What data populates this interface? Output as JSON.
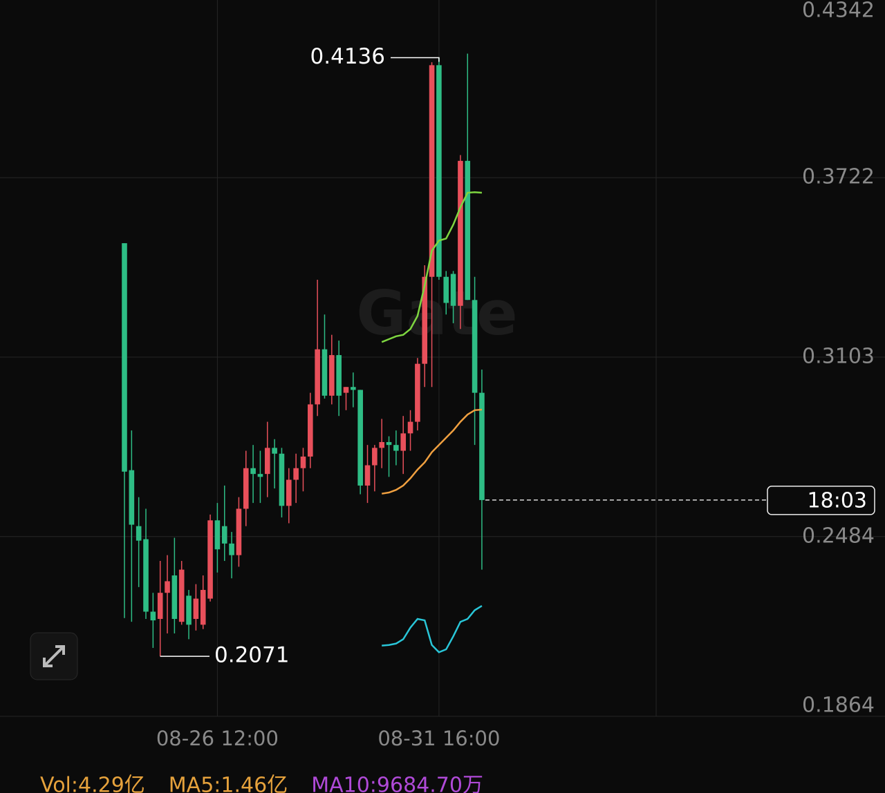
{
  "chart_data": {
    "type": "candlestick",
    "watermark": "Gate",
    "categories": [
      null,
      null,
      null,
      null,
      null,
      null,
      null,
      null,
      null,
      null,
      null,
      null,
      null,
      "08-26 12:00",
      null,
      null,
      null,
      null,
      null,
      null,
      null,
      null,
      null,
      null,
      null,
      null,
      null,
      null,
      null,
      null,
      null,
      null,
      null,
      null,
      null,
      null,
      null,
      null,
      null,
      null,
      null,
      null,
      null,
      null,
      "08-31 16:00",
      null,
      null,
      null,
      null,
      null,
      null
    ],
    "open": [
      0.3496,
      0.2713,
      0.252,
      0.2475,
      0.2225,
      0.22,
      0.229,
      0.235,
      0.219,
      0.228,
      0.22,
      0.218,
      0.227,
      0.254,
      0.252,
      0.246,
      0.242,
      0.258,
      0.272,
      0.27,
      0.27,
      0.279,
      0.277,
      0.259,
      0.268,
      0.272,
      0.276,
      0.294,
      0.313,
      0.297,
      0.311,
      0.298,
      0.3,
      0.299,
      0.266,
      0.273,
      0.279,
      0.281,
      0.28,
      0.278,
      0.284,
      0.288,
      0.308,
      0.338,
      0.411,
      0.338,
      0.339,
      0.328,
      0.378,
      0.33,
      0.298
    ],
    "high": [
      0.3496,
      0.285,
      0.262,
      0.258,
      0.229,
      0.24,
      0.242,
      0.248,
      0.24,
      0.23,
      0.232,
      0.235,
      0.256,
      0.26,
      0.266,
      0.25,
      0.262,
      0.278,
      0.28,
      0.278,
      0.288,
      0.282,
      0.279,
      0.272,
      0.277,
      0.279,
      0.298,
      0.337,
      0.325,
      0.318,
      0.316,
      0.3,
      0.305,
      0.299,
      0.28,
      0.28,
      0.289,
      0.283,
      0.285,
      0.29,
      0.292,
      0.31,
      0.342,
      0.412,
      0.4136,
      0.34,
      0.34,
      0.38,
      0.415,
      0.338,
      0.306
    ],
    "low": [
      0.2203,
      0.219,
      0.231,
      0.22,
      0.21,
      0.2071,
      0.215,
      0.215,
      0.218,
      0.213,
      0.216,
      0.2165,
      0.226,
      0.236,
      0.24,
      0.234,
      0.238,
      0.252,
      0.26,
      0.26,
      0.262,
      0.265,
      0.255,
      0.253,
      0.26,
      0.264,
      0.272,
      0.29,
      0.296,
      0.294,
      0.29,
      0.292,
      0.293,
      0.263,
      0.26,
      0.264,
      0.272,
      0.269,
      0.273,
      0.27,
      0.278,
      0.285,
      0.3,
      0.3,
      0.337,
      0.325,
      0.322,
      0.32,
      0.33,
      0.28,
      0.237
    ],
    "close": [
      0.2708,
      0.2525,
      0.247,
      0.2225,
      0.2195,
      0.229,
      0.233,
      0.22,
      0.237,
      0.218,
      0.227,
      0.23,
      0.254,
      0.244,
      0.246,
      0.242,
      0.258,
      0.272,
      0.27,
      0.269,
      0.279,
      0.277,
      0.259,
      0.268,
      0.272,
      0.276,
      0.294,
      0.313,
      0.297,
      0.311,
      0.297,
      0.3,
      0.299,
      0.266,
      0.273,
      0.279,
      0.281,
      0.28,
      0.278,
      0.284,
      0.288,
      0.308,
      0.338,
      0.411,
      0.338,
      0.329,
      0.328,
      0.378,
      0.33,
      0.298,
      0.261
    ],
    "up_color": "#e8505b",
    "down_color": "#2ebd85",
    "series": [
      {
        "color": "#f0a040",
        "values": [
          null,
          null,
          null,
          null,
          null,
          null,
          null,
          null,
          null,
          null,
          null,
          null,
          null,
          null,
          null,
          null,
          null,
          null,
          null,
          null,
          null,
          null,
          null,
          null,
          null,
          null,
          null,
          null,
          null,
          null,
          null,
          null,
          null,
          null,
          null,
          null,
          0.2632,
          0.2636,
          0.2645,
          0.266,
          0.2685,
          0.2715,
          0.274,
          0.2775,
          0.28,
          0.2825,
          0.285,
          0.288,
          0.2905,
          0.292,
          0.2922
        ]
      },
      {
        "color": "#7ed640",
        "values": [
          null,
          null,
          null,
          null,
          null,
          null,
          null,
          null,
          null,
          null,
          null,
          null,
          null,
          null,
          null,
          null,
          null,
          null,
          null,
          null,
          null,
          null,
          null,
          null,
          null,
          null,
          null,
          null,
          null,
          null,
          null,
          null,
          null,
          null,
          null,
          null,
          0.3155,
          0.3165,
          0.3175,
          0.318,
          0.32,
          0.3245,
          0.335,
          0.347,
          0.3505,
          0.3512,
          0.356,
          0.362,
          0.367,
          0.3672,
          0.367
        ]
      },
      {
        "color": "#29c6d8",
        "values": [
          null,
          null,
          null,
          null,
          null,
          null,
          null,
          null,
          null,
          null,
          null,
          null,
          null,
          null,
          null,
          null,
          null,
          null,
          null,
          null,
          null,
          null,
          null,
          null,
          null,
          null,
          null,
          null,
          null,
          null,
          null,
          null,
          null,
          null,
          null,
          null,
          0.2108,
          0.211,
          0.2115,
          0.213,
          0.217,
          0.22,
          0.2195,
          0.211,
          0.2085,
          0.2095,
          0.214,
          0.219,
          0.22,
          0.223,
          0.2245
        ]
      }
    ],
    "ylim": [
      0.1864,
      0.4342
    ],
    "yticks": [
      0.4342,
      0.3722,
      0.3103,
      0.2484,
      0.1864
    ],
    "high_label": 0.4136,
    "low_label": 0.2071,
    "countdown": "18:03",
    "volume_legend": [
      {
        "text": "Vol:4.29亿",
        "color": "#e6a23c"
      },
      {
        "text": "MA5:1.46亿",
        "color": "#e6a23c"
      },
      {
        "text": "MA10:9684.70万",
        "color": "#b04ad8"
      }
    ]
  }
}
